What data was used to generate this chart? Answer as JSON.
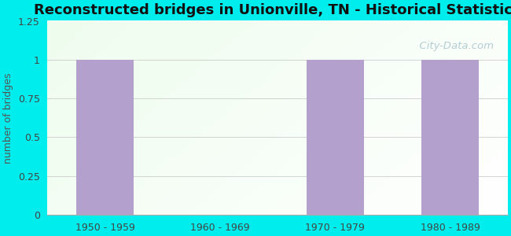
{
  "title": "Reconstructed bridges in Unionville, TN - Historical Statistics",
  "categories": [
    "1950 - 1959",
    "1960 - 1969",
    "1970 - 1979",
    "1980 - 1989"
  ],
  "values": [
    1,
    0,
    1,
    1
  ],
  "bar_color": "#b3a0cc",
  "ylabel": "number of bridges",
  "ylim": [
    0,
    1.25
  ],
  "yticks": [
    0,
    0.25,
    0.5,
    0.75,
    1,
    1.25
  ],
  "outer_bg": "#00eded",
  "inner_bg_topleft": "#d8f0dc",
  "inner_bg_white": "#f5fdf5",
  "title_fontsize": 13,
  "ylabel_fontsize": 9,
  "tick_fontsize": 9,
  "watermark_text": "  City-Data.com",
  "bar_width": 0.5
}
